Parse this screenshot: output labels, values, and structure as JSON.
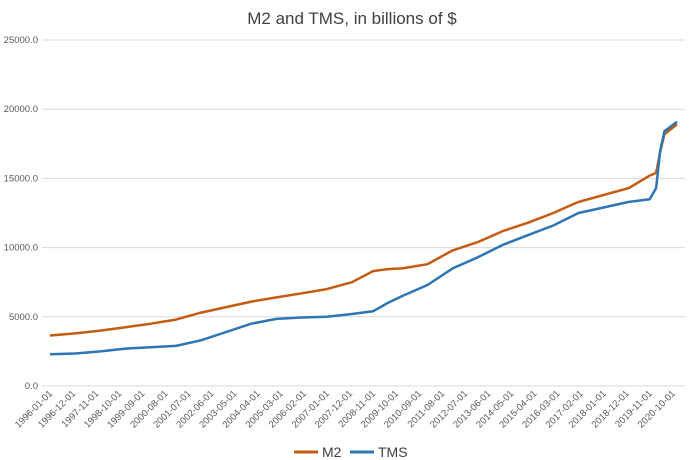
{
  "chart_data": {
    "type": "line",
    "title": "M2 and TMS, in billions of $",
    "xlabel": "",
    "ylabel": "",
    "ylim": [
      0,
      25000
    ],
    "yticks": [
      "0.0",
      "5000.0",
      "10000.0",
      "15000.0",
      "20000.0",
      "25000.0"
    ],
    "grid": true,
    "legend_position": "bottom",
    "x_tick_labels": [
      "1996-01-01",
      "1996-12-01",
      "1997-11-01",
      "1998-10-01",
      "1999-09-01",
      "2000-08-01",
      "2001-07-01",
      "2002-06-01",
      "2003-05-01",
      "2004-04-01",
      "2005-03-01",
      "2006-02-01",
      "2007-01-01",
      "2007-12-01",
      "2008-11-01",
      "2009-10-01",
      "2010-09-01",
      "2011-08-01",
      "2012-07-01",
      "2013-06-01",
      "2014-05-01",
      "2015-04-01",
      "2016-03-01",
      "2017-02-01",
      "2018-01-01",
      "2018-12-01",
      "2019-11-01",
      "2020-10-01"
    ],
    "x": [
      "1996-01-01",
      "1997-01-01",
      "1998-01-01",
      "1999-01-01",
      "2000-01-01",
      "2001-01-01",
      "2002-01-01",
      "2003-01-01",
      "2004-01-01",
      "2005-01-01",
      "2006-01-01",
      "2007-01-01",
      "2008-01-01",
      "2008-11-01",
      "2009-06-01",
      "2010-01-01",
      "2011-01-01",
      "2012-01-01",
      "2013-01-01",
      "2014-01-01",
      "2015-01-01",
      "2016-01-01",
      "2017-01-01",
      "2018-01-01",
      "2019-01-01",
      "2019-11-01",
      "2020-02-01",
      "2020-04-01",
      "2020-06-01",
      "2020-12-01"
    ],
    "series": [
      {
        "name": "M2",
        "color": "#C55A11",
        "values": [
          3650,
          3800,
          4000,
          4250,
          4500,
          4800,
          5300,
          5700,
          6100,
          6400,
          6700,
          7000,
          7500,
          8300,
          8450,
          8500,
          8800,
          9800,
          10400,
          11200,
          11800,
          12500,
          13300,
          13800,
          14300,
          15200,
          15400,
          16900,
          18200,
          18900
        ]
      },
      {
        "name": "TMS",
        "color": "#2E75B6",
        "values": [
          2300,
          2350,
          2500,
          2700,
          2800,
          2900,
          3300,
          3900,
          4500,
          4850,
          4950,
          5000,
          5200,
          5400,
          6000,
          6500,
          7300,
          8500,
          9300,
          10200,
          10900,
          11600,
          12500,
          12900,
          13300,
          13500,
          14300,
          17000,
          18400,
          19100
        ]
      }
    ]
  }
}
